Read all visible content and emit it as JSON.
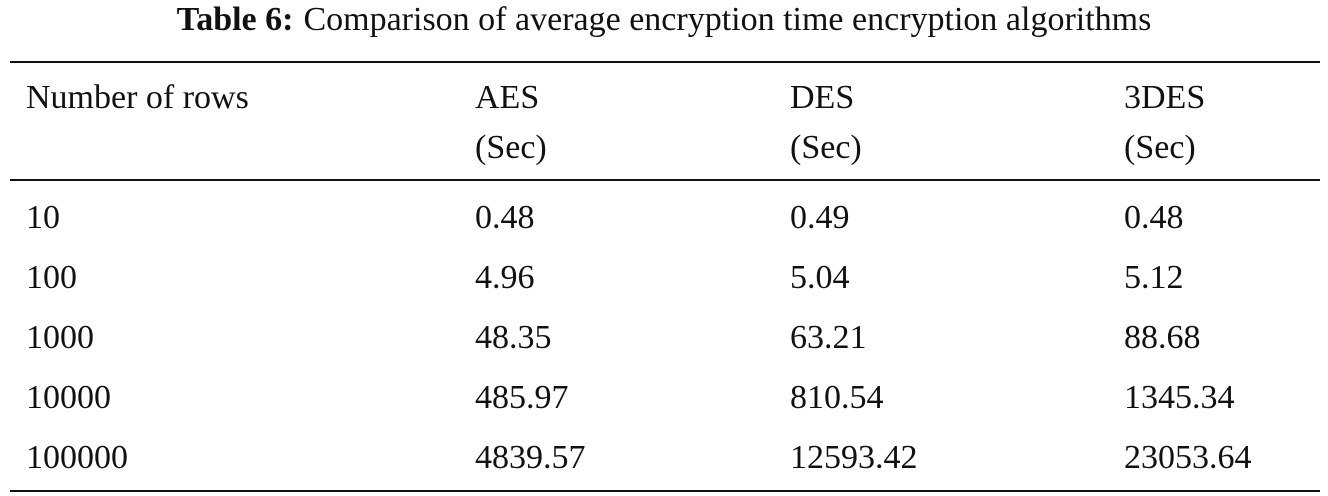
{
  "caption": {
    "label": "Table 6:",
    "text": "Comparison of average encryption time encryption algorithms"
  },
  "table": {
    "header": [
      [
        "Number of rows"
      ],
      [
        "AES",
        "(Sec)"
      ],
      [
        "DES",
        "(Sec)"
      ],
      [
        "3DES",
        "(Sec)"
      ]
    ],
    "rows": [
      [
        "10",
        "0.48",
        "0.49",
        "0.48"
      ],
      [
        "100",
        "4.96",
        "5.04",
        "5.12"
      ],
      [
        "1000",
        "48.35",
        "63.21",
        "88.68"
      ],
      [
        "10000",
        "485.97",
        "810.54",
        "1345.34"
      ],
      [
        "100000",
        "4839.57",
        "12593.42",
        "23053.64"
      ]
    ]
  }
}
